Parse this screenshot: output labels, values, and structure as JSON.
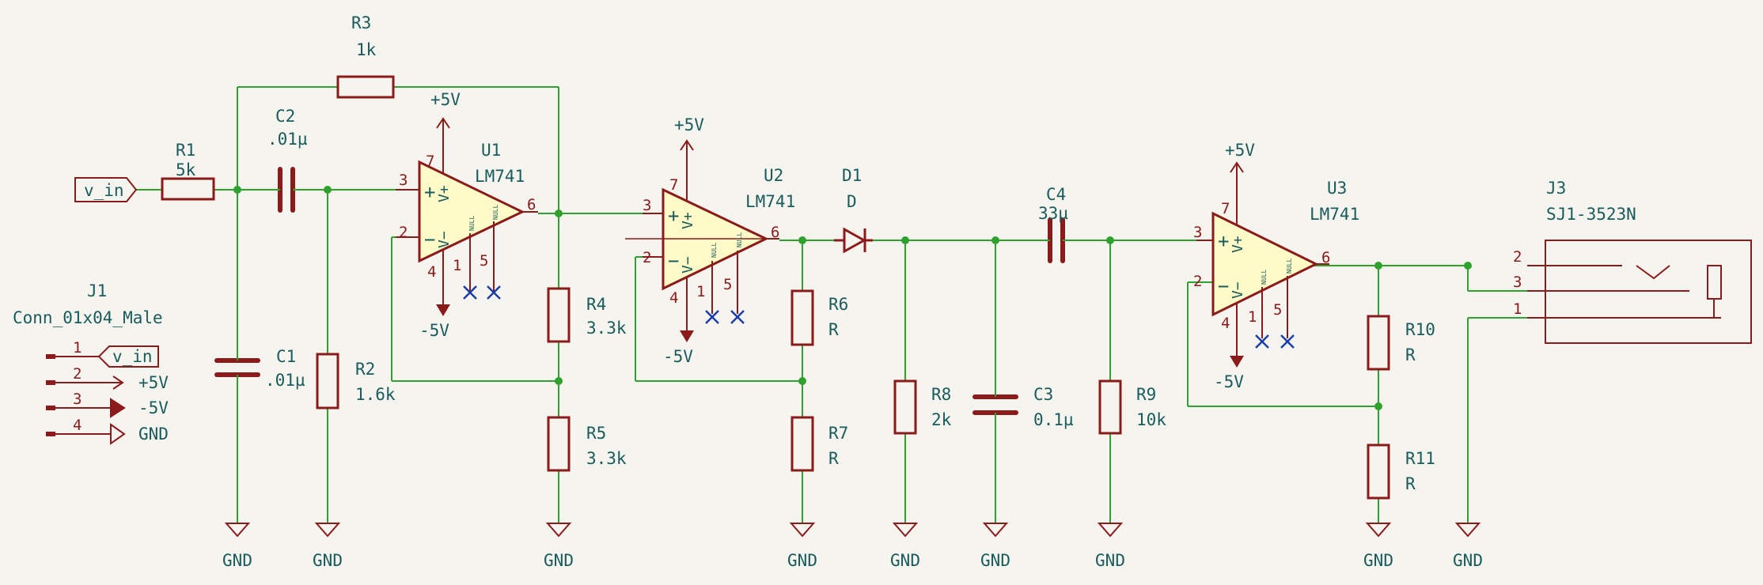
{
  "colors": {
    "background": "#f5f4ef",
    "wire": "#2fa12f",
    "component": "#8b1a1a",
    "opamp_fill": "#fffbc8",
    "label_text": "#1a5b5b",
    "no_connect": "#1a3ca8"
  },
  "components": {
    "R1": {
      "ref": "R1",
      "value": "5k"
    },
    "R2": {
      "ref": "R2",
      "value": "1.6k"
    },
    "R3": {
      "ref": "R3",
      "value": "1k"
    },
    "R4": {
      "ref": "R4",
      "value": "3.3k"
    },
    "R5": {
      "ref": "R5",
      "value": "3.3k"
    },
    "R6": {
      "ref": "R6",
      "value": "R"
    },
    "R7": {
      "ref": "R7",
      "value": "R"
    },
    "R8": {
      "ref": "R8",
      "value": "2k"
    },
    "R9": {
      "ref": "R9",
      "value": "10k"
    },
    "R10": {
      "ref": "R10",
      "value": "R"
    },
    "R11": {
      "ref": "R11",
      "value": "R"
    },
    "C1": {
      "ref": "C1",
      "value": ".01µ"
    },
    "C2": {
      "ref": "C2",
      "value": ".01µ"
    },
    "C3": {
      "ref": "C3",
      "value": "0.1µ"
    },
    "C4": {
      "ref": "C4",
      "value": "33µ"
    },
    "D1": {
      "ref": "D1",
      "value": "D"
    },
    "U1": {
      "ref": "U1",
      "value": "LM741"
    },
    "U2": {
      "ref": "U2",
      "value": "LM741"
    },
    "U3": {
      "ref": "U3",
      "value": "LM741"
    },
    "J1": {
      "ref": "J1",
      "value": "Conn_01x04_Male",
      "pins": [
        "1",
        "2",
        "3",
        "4"
      ]
    },
    "J3": {
      "ref": "J3",
      "value": "SJ1-3523N",
      "pins": [
        "2",
        "3",
        "1"
      ]
    }
  },
  "opamp_pins": {
    "in_plus": "3",
    "in_minus": "2",
    "out": "6",
    "vplus": "7",
    "vminus": "4",
    "null1": "1",
    "null2": "5",
    "plus_sign": "+",
    "minus_sign": "−",
    "vplus_label": "V+",
    "vminus_label": "V−",
    "null_label": "NULL"
  },
  "nets": {
    "gnd": "GND",
    "pos5": "+5V",
    "neg5": "-5V",
    "vin": "v_in"
  }
}
